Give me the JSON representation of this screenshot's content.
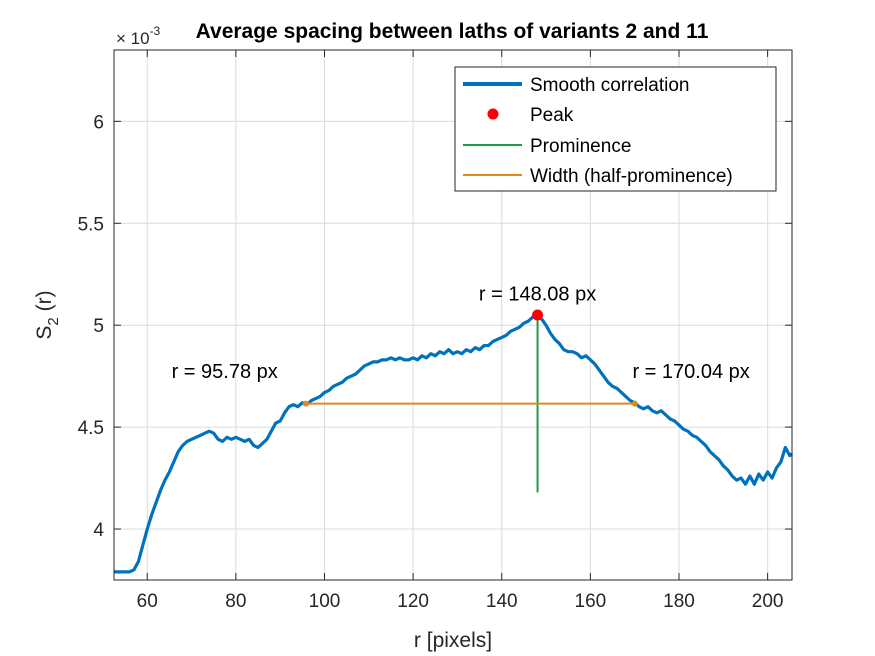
{
  "chart_data": {
    "type": "line",
    "title": "Average spacing between laths of variants 2 and 11",
    "xlabel": "r [pixels]",
    "ylabel_main": "S",
    "ylabel_sub": "2",
    "ylabel_tail": " (r)",
    "y_exponent_base": "× 10",
    "y_exponent_power": "-3",
    "xlim": [
      52.5,
      205.5
    ],
    "ylim": [
      3.75,
      6.35
    ],
    "grid": true,
    "x_ticks": [
      60,
      80,
      100,
      120,
      140,
      160,
      180,
      200
    ],
    "y_ticks": [
      4,
      4.5,
      5,
      5.5,
      6
    ],
    "x_tick_labels": [
      "60",
      "80",
      "100",
      "120",
      "140",
      "160",
      "180",
      "200"
    ],
    "y_tick_labels": [
      "4",
      "4.5",
      "5",
      "5.5",
      "6"
    ],
    "legend_position": "top-right",
    "legend": [
      {
        "label": "Smooth correlation",
        "kind": "line",
        "color": "#0072bd"
      },
      {
        "label": "Peak",
        "kind": "marker",
        "color": "#ff0000"
      },
      {
        "label": "Prominence",
        "kind": "line",
        "color": "#1e9b4a"
      },
      {
        "label": "Width (half-prominence)",
        "kind": "line",
        "color": "#e08a1e"
      }
    ],
    "series": [
      {
        "name": "Smooth correlation",
        "color": "#0072bd",
        "points": [
          [
            52.5,
            3.79
          ],
          [
            54,
            3.79
          ],
          [
            56,
            3.79
          ],
          [
            57,
            3.8
          ],
          [
            58,
            3.84
          ],
          [
            59,
            3.92
          ],
          [
            60,
            4.0
          ],
          [
            61,
            4.07
          ],
          [
            62,
            4.13
          ],
          [
            63,
            4.19
          ],
          [
            64,
            4.24
          ],
          [
            65,
            4.28
          ],
          [
            66,
            4.33
          ],
          [
            67,
            4.38
          ],
          [
            68,
            4.41
          ],
          [
            69,
            4.43
          ],
          [
            70,
            4.44
          ],
          [
            71,
            4.45
          ],
          [
            72,
            4.46
          ],
          [
            73,
            4.47
          ],
          [
            74,
            4.48
          ],
          [
            75,
            4.47
          ],
          [
            76,
            4.44
          ],
          [
            77,
            4.43
          ],
          [
            78,
            4.45
          ],
          [
            79,
            4.44
          ],
          [
            80,
            4.45
          ],
          [
            81,
            4.44
          ],
          [
            82,
            4.43
          ],
          [
            83,
            4.44
          ],
          [
            84,
            4.41
          ],
          [
            85,
            4.4
          ],
          [
            86,
            4.42
          ],
          [
            87,
            4.44
          ],
          [
            88,
            4.48
          ],
          [
            89,
            4.52
          ],
          [
            90,
            4.53
          ],
          [
            91,
            4.57
          ],
          [
            92,
            4.6
          ],
          [
            93,
            4.61
          ],
          [
            94,
            4.6
          ],
          [
            95,
            4.62
          ],
          [
            96,
            4.61
          ],
          [
            97,
            4.63
          ],
          [
            98,
            4.64
          ],
          [
            99,
            4.65
          ],
          [
            100,
            4.67
          ],
          [
            101,
            4.68
          ],
          [
            102,
            4.7
          ],
          [
            103,
            4.71
          ],
          [
            104,
            4.72
          ],
          [
            105,
            4.74
          ],
          [
            106,
            4.75
          ],
          [
            107,
            4.76
          ],
          [
            108,
            4.78
          ],
          [
            109,
            4.8
          ],
          [
            110,
            4.81
          ],
          [
            111,
            4.82
          ],
          [
            112,
            4.82
          ],
          [
            113,
            4.83
          ],
          [
            114,
            4.83
          ],
          [
            115,
            4.84
          ],
          [
            116,
            4.83
          ],
          [
            117,
            4.84
          ],
          [
            118,
            4.83
          ],
          [
            119,
            4.83
          ],
          [
            120,
            4.84
          ],
          [
            121,
            4.83
          ],
          [
            122,
            4.85
          ],
          [
            123,
            4.84
          ],
          [
            124,
            4.86
          ],
          [
            125,
            4.85
          ],
          [
            126,
            4.87
          ],
          [
            127,
            4.86
          ],
          [
            128,
            4.88
          ],
          [
            129,
            4.86
          ],
          [
            130,
            4.87
          ],
          [
            131,
            4.86
          ],
          [
            132,
            4.88
          ],
          [
            133,
            4.87
          ],
          [
            134,
            4.89
          ],
          [
            135,
            4.88
          ],
          [
            136,
            4.9
          ],
          [
            137,
            4.9
          ],
          [
            138,
            4.92
          ],
          [
            139,
            4.93
          ],
          [
            140,
            4.94
          ],
          [
            141,
            4.95
          ],
          [
            142,
            4.97
          ],
          [
            143,
            4.98
          ],
          [
            144,
            4.99
          ],
          [
            145,
            5.01
          ],
          [
            146,
            5.02
          ],
          [
            147,
            5.04
          ],
          [
            148.08,
            5.05
          ],
          [
            149,
            5.03
          ],
          [
            150,
            5.0
          ],
          [
            151,
            4.96
          ],
          [
            152,
            4.93
          ],
          [
            153,
            4.91
          ],
          [
            154,
            4.88
          ],
          [
            155,
            4.87
          ],
          [
            156,
            4.87
          ],
          [
            157,
            4.86
          ],
          [
            158,
            4.84
          ],
          [
            159,
            4.85
          ],
          [
            160,
            4.83
          ],
          [
            161,
            4.81
          ],
          [
            162,
            4.78
          ],
          [
            163,
            4.75
          ],
          [
            164,
            4.72
          ],
          [
            165,
            4.7
          ],
          [
            166,
            4.69
          ],
          [
            167,
            4.67
          ],
          [
            168,
            4.65
          ],
          [
            169,
            4.63
          ],
          [
            170,
            4.62
          ],
          [
            171,
            4.6
          ],
          [
            172,
            4.59
          ],
          [
            173,
            4.6
          ],
          [
            174,
            4.58
          ],
          [
            175,
            4.57
          ],
          [
            176,
            4.58
          ],
          [
            177,
            4.56
          ],
          [
            178,
            4.54
          ],
          [
            179,
            4.53
          ],
          [
            180,
            4.51
          ],
          [
            181,
            4.49
          ],
          [
            182,
            4.48
          ],
          [
            183,
            4.46
          ],
          [
            184,
            4.45
          ],
          [
            185,
            4.43
          ],
          [
            186,
            4.41
          ],
          [
            187,
            4.38
          ],
          [
            188,
            4.36
          ],
          [
            189,
            4.34
          ],
          [
            190,
            4.31
          ],
          [
            191,
            4.29
          ],
          [
            192,
            4.26
          ],
          [
            193,
            4.24
          ],
          [
            194,
            4.25
          ],
          [
            195,
            4.22
          ],
          [
            196,
            4.26
          ],
          [
            197,
            4.22
          ],
          [
            198,
            4.27
          ],
          [
            199,
            4.24
          ],
          [
            200,
            4.28
          ],
          [
            201,
            4.25
          ],
          [
            202,
            4.3
          ],
          [
            203,
            4.33
          ],
          [
            204,
            4.4
          ],
          [
            205,
            4.36
          ],
          [
            205.5,
            4.37
          ]
        ]
      }
    ],
    "peak": {
      "x": 148.08,
      "y": 5.05,
      "color": "#ff0000"
    },
    "prominence": {
      "x": 148.08,
      "y_from": 4.18,
      "y_to": 5.05,
      "color": "#1e9b4a"
    },
    "width": {
      "x_from": 95.78,
      "x_to": 170.04,
      "y": 4.615,
      "color": "#e08a1e"
    },
    "annotations": [
      {
        "text": "r = 148.08 px",
        "x": 148.08,
        "y": 5.12,
        "anchor": "middle"
      },
      {
        "text": "r = 95.78 px",
        "x": 65.5,
        "y": 4.74,
        "anchor": "start"
      },
      {
        "text": "r = 170.04 px",
        "x": 169.5,
        "y": 4.74,
        "anchor": "start"
      }
    ]
  }
}
